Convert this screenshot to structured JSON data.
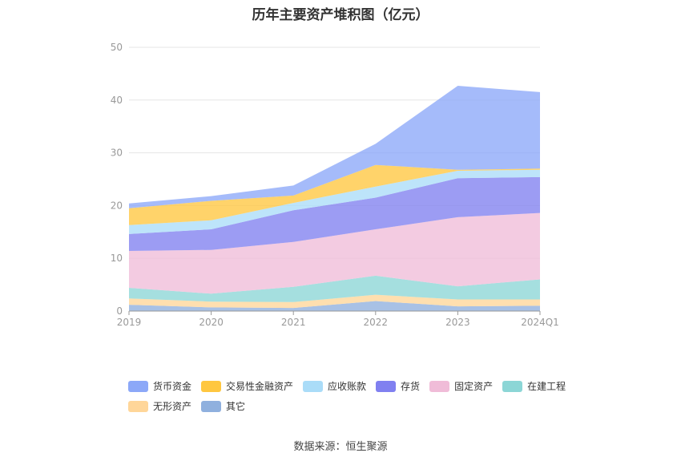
{
  "chart_data": {
    "type": "area",
    "stacked": true,
    "title": "历年主要资产堆积图（亿元）",
    "categories": [
      "2019",
      "2020",
      "2021",
      "2022",
      "2023",
      "2024Q1"
    ],
    "ylim": [
      0,
      50
    ],
    "yticks": [
      "0",
      "10",
      "20",
      "30",
      "40",
      "50"
    ],
    "grid": true,
    "legend_position": "bottom",
    "series": [
      {
        "name": "其它",
        "color": "#8fb0de",
        "values": [
          1.2,
          0.7,
          0.6,
          1.9,
          0.9,
          1.0
        ]
      },
      {
        "name": "无形资产",
        "color": "#ffd699",
        "values": [
          1.2,
          1.1,
          1.1,
          1.2,
          1.3,
          1.2
        ]
      },
      {
        "name": "在建工程",
        "color": "#8cd6d6",
        "values": [
          2.0,
          1.5,
          2.9,
          3.6,
          2.5,
          3.8
        ]
      },
      {
        "name": "固定资产",
        "color": "#f0bcd8",
        "values": [
          7.0,
          8.3,
          8.5,
          8.8,
          13.1,
          12.6
        ]
      },
      {
        "name": "存货",
        "color": "#8080f0",
        "values": [
          3.2,
          3.9,
          6.0,
          6.0,
          7.4,
          6.8
        ]
      },
      {
        "name": "应收账款",
        "color": "#aadcf8",
        "values": [
          1.7,
          1.7,
          1.4,
          2.1,
          1.4,
          1.4
        ]
      },
      {
        "name": "交易性金融资产",
        "color": "#ffc740",
        "values": [
          3.2,
          3.7,
          1.4,
          4.1,
          0.2,
          0.2
        ]
      },
      {
        "name": "货币资金",
        "color": "#8ca8f8",
        "values": [
          0.9,
          0.9,
          1.9,
          4.0,
          15.9,
          14.5
        ]
      }
    ],
    "legend_order": [
      "货币资金",
      "交易性金融资产",
      "应收账款",
      "存货",
      "固定资产",
      "在建工程",
      "无形资产",
      "其它"
    ]
  },
  "source": "数据来源：恒生聚源"
}
